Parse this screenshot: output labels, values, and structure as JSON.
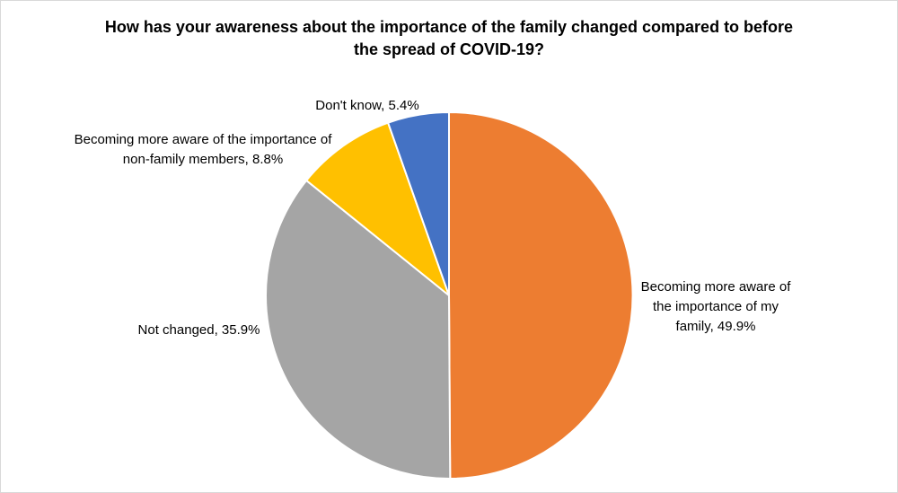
{
  "chart_data": {
    "type": "pie",
    "title": "How has your awareness about the importance of the family changed compared to before the spread of COVID-19?",
    "title_lines": [
      "How has your awareness about the importance of the family changed compared to before",
      "the spread of COVID-19?"
    ],
    "start_angle_deg": -90,
    "direction": "clockwise",
    "legend": "none",
    "background_color": "#FFFFFF",
    "border_color": "#D9D9D9",
    "separator_color": "#FFFFFF",
    "slices": [
      {
        "label": "Becoming more aware of the importance of my family",
        "value": 49.9,
        "color": "#ED7D31",
        "label_lines": [
          "Becoming more aware of",
          "the importance of my",
          "family, 49.9%"
        ]
      },
      {
        "label": "Not changed",
        "value": 35.9,
        "color": "#A5A5A5",
        "label_lines": [
          "Not changed, 35.9%"
        ]
      },
      {
        "label": "Becoming more aware of the importance of non-family members",
        "value": 8.8,
        "color": "#FFC000",
        "label_lines": [
          "Becoming more aware of the importance of",
          "non-family members, 8.8%"
        ]
      },
      {
        "label": "Don't know",
        "value": 5.4,
        "color": "#4472C4",
        "label_lines": [
          "Don't know, 5.4%"
        ]
      }
    ]
  }
}
